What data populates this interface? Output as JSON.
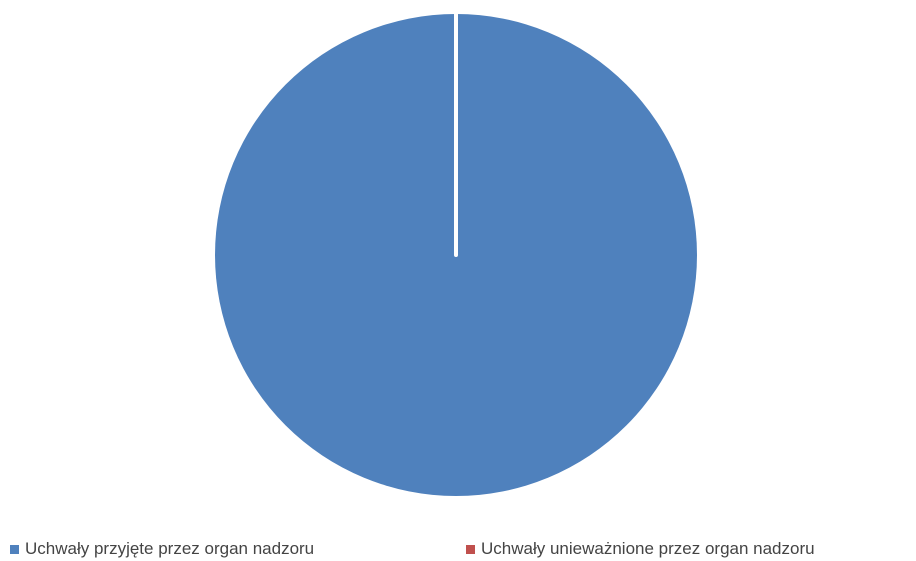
{
  "chart_data": {
    "type": "pie",
    "categories": [
      "Uchwały przyjęte przez organ nadzoru",
      "Uchwały unieważnione przez organ nadzoru"
    ],
    "values": [
      100,
      0
    ],
    "colors": [
      "#4f81bd",
      "#c0504d"
    ],
    "title": "",
    "legend_position": "bottom"
  }
}
